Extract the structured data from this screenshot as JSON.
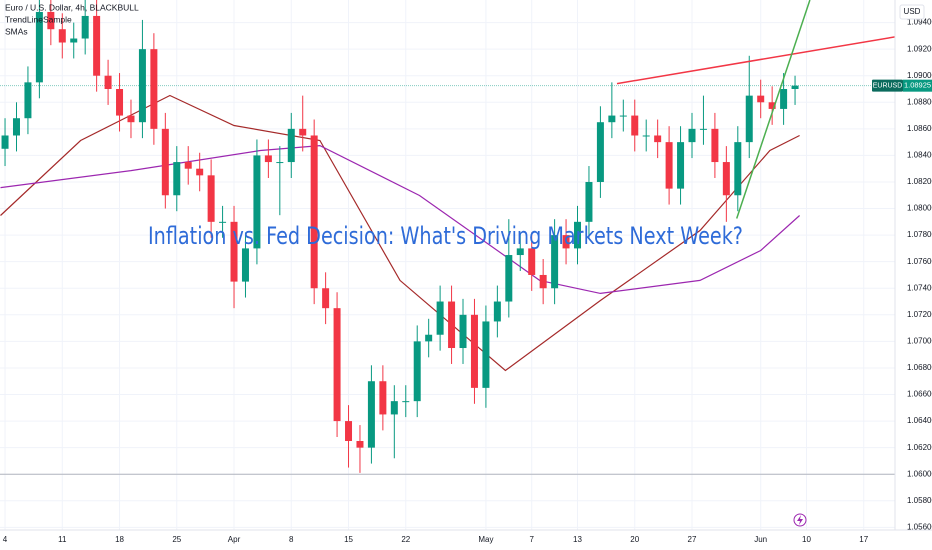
{
  "chart_data": {
    "type": "candlestick",
    "title": "Euro / U.S. Dollar, 4h, BLACKBULL",
    "indicators": [
      "TrendLineSample",
      "SMAs"
    ],
    "annotation": "Inflation vs. Fed Decision: What's Driving Markets Next Week?",
    "currency": "USD",
    "symbol": "EURUSD",
    "up_color": "#089981",
    "down_color": "#f23645",
    "open": [
      1.0845,
      1.0855,
      1.0868,
      1.0895,
      1.0948,
      1.0935,
      1.0925,
      1.0928,
      1.0945,
      1.09,
      1.089,
      1.087,
      1.0865,
      1.092,
      1.086,
      1.081,
      1.0835,
      1.083,
      1.0825,
      1.079,
      1.079,
      1.0745,
      1.077,
      1.084,
      1.0835,
      1.0835,
      1.086,
      1.0855,
      1.074,
      1.0725,
      1.064,
      1.0625,
      1.062,
      1.067,
      1.0645,
      1.0655,
      1.0655,
      1.07,
      1.0705,
      1.073,
      1.0695,
      1.072,
      1.0665,
      1.0715,
      1.073,
      1.0765,
      1.077,
      1.075,
      1.074,
      1.078,
      1.077,
      1.079,
      1.082,
      1.0865,
      1.087,
      1.087,
      1.0855,
      1.0855,
      1.085,
      1.0815,
      1.085,
      1.086,
      1.086,
      1.0835,
      1.081,
      1.085,
      1.0885,
      1.088,
      1.0875,
      1.089
    ],
    "high": [
      1.0868,
      1.088,
      1.0907,
      1.096,
      1.0962,
      1.0947,
      1.094,
      1.0957,
      1.0957,
      1.0912,
      1.0902,
      1.0882,
      1.0942,
      1.0932,
      1.0872,
      1.0847,
      1.0847,
      1.0842,
      1.0837,
      1.0802,
      1.0802,
      1.0782,
      1.0852,
      1.0852,
      1.0847,
      1.0872,
      1.0885,
      1.0867,
      1.0752,
      1.0737,
      1.0652,
      1.0637,
      1.0682,
      1.0682,
      1.0667,
      1.0667,
      1.0712,
      1.0717,
      1.0742,
      1.0742,
      1.0732,
      1.0732,
      1.0727,
      1.0742,
      1.0792,
      1.0782,
      1.0782,
      1.0762,
      1.0792,
      1.0792,
      1.0802,
      1.0832,
      1.0877,
      1.0895,
      1.0882,
      1.0882,
      1.0867,
      1.0867,
      1.0862,
      1.0862,
      1.0872,
      1.0885,
      1.0872,
      1.0847,
      1.0862,
      1.0915,
      1.0897,
      1.0892,
      1.0902,
      1.09
    ],
    "low": [
      1.0832,
      1.0843,
      1.0856,
      1.0883,
      1.0923,
      1.0913,
      1.0913,
      1.0916,
      1.0888,
      1.0878,
      1.0858,
      1.0853,
      1.0853,
      1.0848,
      1.08,
      1.0798,
      1.0818,
      1.0813,
      1.0778,
      1.0778,
      1.0725,
      1.0733,
      1.0758,
      1.0823,
      1.0795,
      1.0823,
      1.0843,
      1.0728,
      1.0713,
      1.0628,
      1.0605,
      1.0601,
      1.0608,
      1.0633,
      1.0612,
      1.0643,
      1.0643,
      1.0688,
      1.0693,
      1.0683,
      1.0683,
      1.0653,
      1.065,
      1.0703,
      1.0718,
      1.0753,
      1.0738,
      1.0728,
      1.0728,
      1.0758,
      1.0758,
      1.0778,
      1.0808,
      1.0853,
      1.0858,
      1.0843,
      1.0843,
      1.0838,
      1.0803,
      1.0803,
      1.0838,
      1.0848,
      1.0823,
      1.079,
      1.0798,
      1.0838,
      1.0868,
      1.0863,
      1.0863,
      1.0878
    ],
    "close": [
      1.0855,
      1.0868,
      1.0895,
      1.0948,
      1.0935,
      1.0925,
      1.0928,
      1.0945,
      1.09,
      1.089,
      1.087,
      1.0865,
      1.092,
      1.086,
      1.081,
      1.0835,
      1.083,
      1.0825,
      1.079,
      1.079,
      1.0745,
      1.077,
      1.084,
      1.0835,
      1.0835,
      1.086,
      1.0855,
      1.074,
      1.0725,
      1.064,
      1.0625,
      1.062,
      1.067,
      1.0645,
      1.0655,
      1.0655,
      1.07,
      1.0705,
      1.073,
      1.0695,
      1.072,
      1.0665,
      1.0715,
      1.073,
      1.0765,
      1.077,
      1.075,
      1.074,
      1.078,
      1.077,
      1.079,
      1.082,
      1.0865,
      1.087,
      1.087,
      1.0855,
      1.0855,
      1.085,
      1.0815,
      1.085,
      1.086,
      1.086,
      1.0835,
      1.081,
      1.085,
      1.0885,
      1.088,
      1.0875,
      1.089,
      1.08925
    ],
    "sma": [
      {
        "color": "#a52a2a",
        "x": [
          -0.4,
          6.6,
          14.4,
          20,
          27.5,
          34.5,
          43.7,
          52,
          60.7,
          66.8,
          69.4
        ],
        "values": [
          1.07948,
          1.08512,
          1.08851,
          1.08625,
          1.08512,
          1.07459,
          1.06781,
          1.07308,
          1.07835,
          1.08437,
          1.0855
        ]
      },
      {
        "color": "#9c27b0",
        "x": [
          -0.4,
          11,
          22.3,
          27.5,
          36.2,
          46.7,
          52,
          60.7,
          66,
          69.4
        ],
        "values": [
          1.08158,
          1.08286,
          1.08437,
          1.08474,
          1.08098,
          1.07459,
          1.07361,
          1.07459,
          1.07684,
          1.07948
        ]
      }
    ],
    "trend_lines": [
      {
        "color": "#f23645",
        "x": [
          53.45,
          81
        ],
        "values": [
          1.08941,
          1.0934
        ]
      },
      {
        "color": "#4caf50",
        "x": [
          63.9,
          70.3
        ],
        "values": [
          1.07925,
          1.0957
        ]
      }
    ],
    "horizontal_lines": [
      {
        "value": 1.06,
        "color": "#b2b5be"
      }
    ],
    "xlim": [
      -0.44,
      77.73
    ],
    "ylim": [
      1.0558,
      1.0957
    ],
    "xticks": [
      {
        "value": 0,
        "label": "4"
      },
      {
        "value": 5,
        "label": "11"
      },
      {
        "value": 10,
        "label": "18"
      },
      {
        "value": 15,
        "label": "25"
      },
      {
        "value": 20,
        "label": "Apr"
      },
      {
        "value": 25,
        "label": "8"
      },
      {
        "value": 30,
        "label": "15"
      },
      {
        "value": 35,
        "label": "22"
      },
      {
        "value": 42,
        "label": "May"
      },
      {
        "value": 46,
        "label": "7"
      },
      {
        "value": 50,
        "label": "13"
      },
      {
        "value": 55,
        "label": "20"
      },
      {
        "value": 60,
        "label": "27"
      },
      {
        "value": 66,
        "label": "Jun"
      },
      {
        "value": 70,
        "label": "10"
      },
      {
        "value": 75,
        "label": "17"
      }
    ],
    "yticks": [
      {
        "value": 1.056,
        "label": "1.05600"
      },
      {
        "value": 1.058,
        "label": "1.05800"
      },
      {
        "value": 1.06,
        "label": "1.06000"
      },
      {
        "value": 1.062,
        "label": "1.06200"
      },
      {
        "value": 1.064,
        "label": "1.06400"
      },
      {
        "value": 1.066,
        "label": "1.06600"
      },
      {
        "value": 1.068,
        "label": "1.06800"
      },
      {
        "value": 1.07,
        "label": "1.07000"
      },
      {
        "value": 1.072,
        "label": "1.07200"
      },
      {
        "value": 1.074,
        "label": "1.07400"
      },
      {
        "value": 1.076,
        "label": "1.07600"
      },
      {
        "value": 1.078,
        "label": "1.07800"
      },
      {
        "value": 1.08,
        "label": "1.08000"
      },
      {
        "value": 1.082,
        "label": "1.08200"
      },
      {
        "value": 1.084,
        "label": "1.08400"
      },
      {
        "value": 1.086,
        "label": "1.08600"
      },
      {
        "value": 1.088,
        "label": "1.08800"
      },
      {
        "value": 1.09,
        "label": "1.09000"
      },
      {
        "value": 1.092,
        "label": "1.09200"
      },
      {
        "value": 1.094,
        "label": "1.09400"
      }
    ],
    "grid": true
  }
}
